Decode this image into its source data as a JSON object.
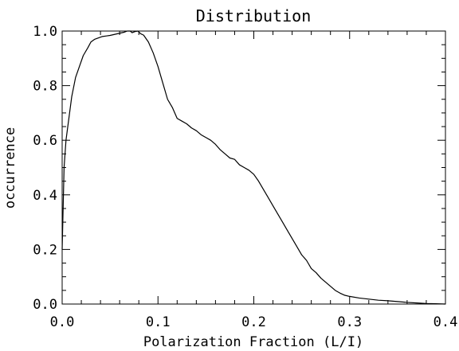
{
  "chart_data": {
    "type": "line",
    "title": "Distribution",
    "xlabel": "Polarization Fraction (L/I)",
    "ylabel": "occurrence",
    "xlim": [
      0.0,
      0.4
    ],
    "ylim": [
      0.0,
      1.0
    ],
    "x_ticks": [
      "0.0",
      "0.1",
      "0.2",
      "0.3",
      "0.4"
    ],
    "y_ticks": [
      "0.0",
      "0.2",
      "0.4",
      "0.6",
      "0.8",
      "1.0"
    ],
    "grid": false,
    "legend": "none",
    "line_color": "#000000",
    "series": [
      {
        "x": [
          0.0,
          0.002,
          0.004,
          0.007,
          0.01,
          0.014,
          0.018,
          0.022,
          0.027,
          0.03,
          0.034,
          0.038,
          0.042,
          0.046,
          0.05,
          0.055,
          0.06,
          0.065,
          0.068,
          0.071,
          0.073,
          0.076,
          0.079,
          0.082,
          0.085,
          0.09,
          0.095,
          0.1,
          0.105,
          0.11,
          0.115,
          0.12,
          0.125,
          0.13,
          0.135,
          0.14,
          0.145,
          0.15,
          0.155,
          0.16,
          0.165,
          0.17,
          0.175,
          0.18,
          0.185,
          0.19,
          0.195,
          0.2,
          0.205,
          0.21,
          0.215,
          0.22,
          0.225,
          0.23,
          0.235,
          0.24,
          0.245,
          0.25,
          0.255,
          0.26,
          0.265,
          0.27,
          0.275,
          0.28,
          0.285,
          0.29,
          0.295,
          0.3,
          0.31,
          0.32,
          0.33,
          0.34,
          0.35,
          0.36,
          0.37,
          0.38,
          0.39,
          0.4
        ],
        "values": [
          0.2,
          0.5,
          0.6,
          0.68,
          0.76,
          0.83,
          0.87,
          0.91,
          0.94,
          0.96,
          0.97,
          0.975,
          0.98,
          0.982,
          0.984,
          0.988,
          0.992,
          0.996,
          1.0,
          1.0,
          0.994,
          0.998,
          1.0,
          0.99,
          0.985,
          0.96,
          0.92,
          0.87,
          0.81,
          0.75,
          0.72,
          0.68,
          0.67,
          0.66,
          0.645,
          0.635,
          0.62,
          0.61,
          0.6,
          0.585,
          0.565,
          0.55,
          0.535,
          0.53,
          0.51,
          0.5,
          0.49,
          0.475,
          0.45,
          0.42,
          0.39,
          0.36,
          0.33,
          0.3,
          0.27,
          0.24,
          0.21,
          0.18,
          0.16,
          0.13,
          0.115,
          0.095,
          0.08,
          0.065,
          0.05,
          0.04,
          0.032,
          0.028,
          0.022,
          0.018,
          0.014,
          0.012,
          0.009,
          0.006,
          0.004,
          0.002,
          0.001,
          0.0
        ]
      }
    ]
  }
}
